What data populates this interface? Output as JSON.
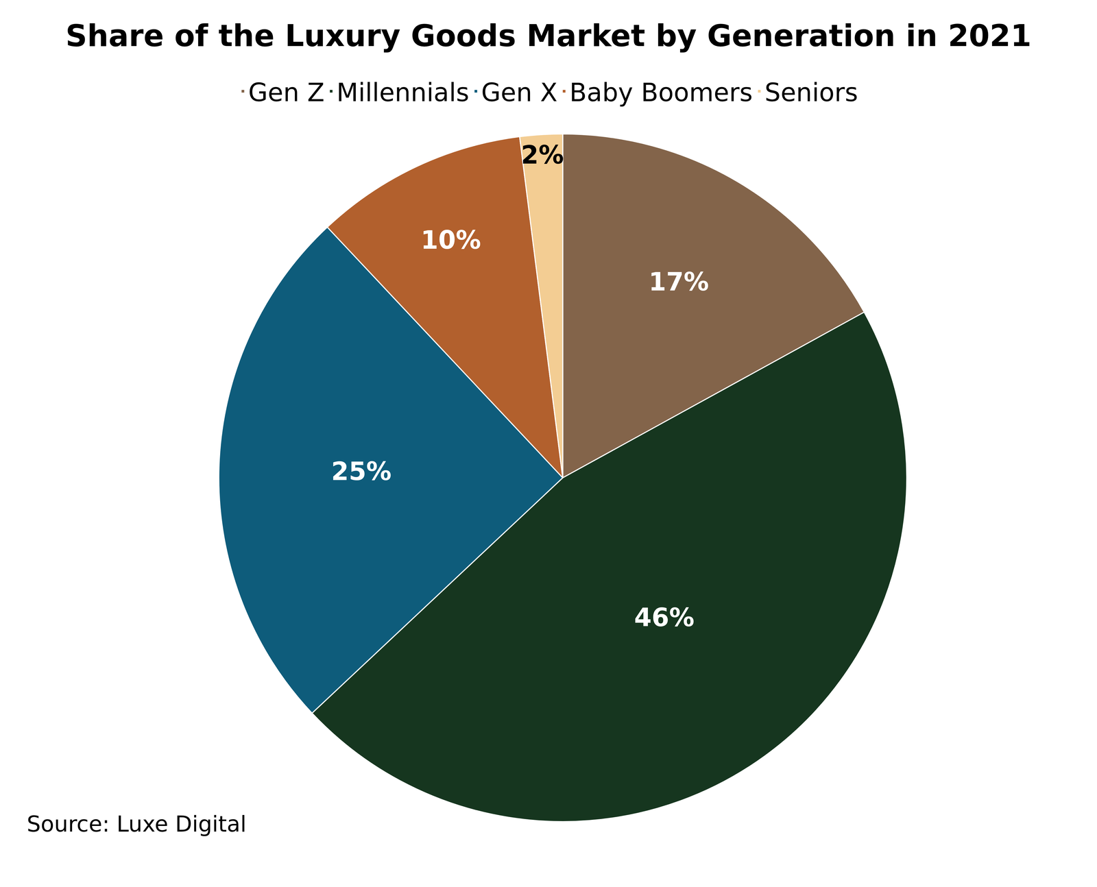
{
  "chart_data": {
    "type": "pie",
    "title": "Share of the Luxury Goods Market by Generation in 2021",
    "categories": [
      "Gen Z",
      "Millennials",
      "Gen X",
      "Baby Boomers",
      "Seniors"
    ],
    "values": [
      17,
      46,
      25,
      10,
      2
    ],
    "value_labels": [
      "17%",
      "46%",
      "25%",
      "10%",
      "2%"
    ],
    "colors": [
      "#83644a",
      "#16361f",
      "#0e5c7b",
      "#b2602d",
      "#f3cd93"
    ],
    "data_labels": true,
    "legend": "top",
    "annotations": [
      "Source: Luxe Digital"
    ]
  }
}
